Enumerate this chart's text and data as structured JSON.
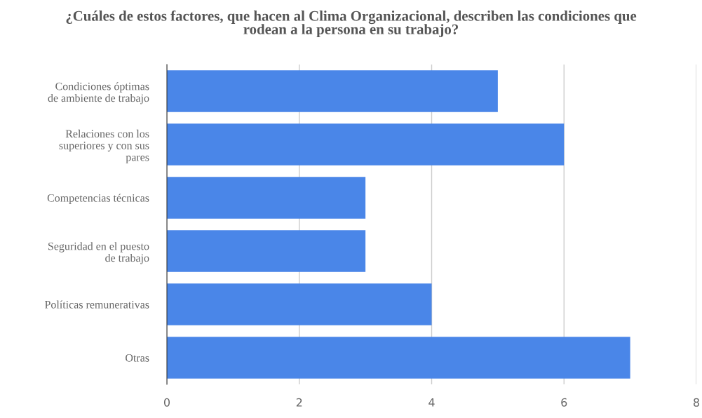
{
  "chart_data": {
    "type": "bar",
    "orientation": "horizontal",
    "title": "¿Cuáles de estos factores, que hacen al Clima Organizacional, describen las condiciones que\nrodean a la persona en su trabajo?",
    "categories": [
      "Condiciones óptimas\nde ambiente de trabajo",
      "Relaciones con los\nsuperiores y con sus\npares",
      "Competencias técnicas",
      "Seguridad en el puesto\nde trabajo",
      "Políticas remunerativas",
      "Otras"
    ],
    "values": [
      5,
      6,
      3,
      3,
      4,
      7
    ],
    "color": "#4a86e8",
    "xlim": [
      0,
      8
    ],
    "xticks": [
      0,
      2,
      4,
      6,
      8
    ],
    "grid": "x",
    "legend": false
  }
}
